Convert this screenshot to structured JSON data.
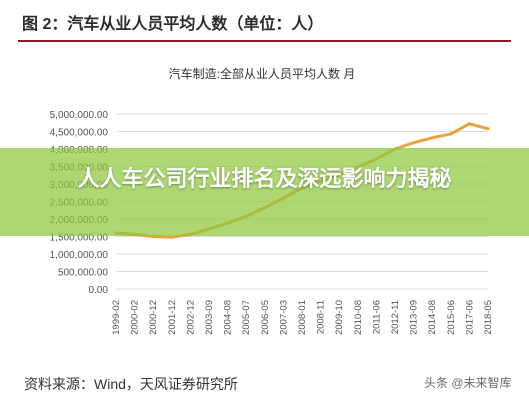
{
  "figure": {
    "title": "图 2：汽车从业人员平均人数（单位：人）",
    "source": "资料来源：Wind，天风证券研究所",
    "watermark": "头条 @未来智库"
  },
  "banner": {
    "text": "人人车公司行业排名及深远影响力揭秘"
  },
  "colors": {
    "line": "#E8A33C",
    "rule": "#8E1A22",
    "grid": "#DDDDDD",
    "banner": "#8CC83C"
  },
  "chart_data": {
    "type": "line",
    "title": "汽车制造:全部从业人员平均人数 月",
    "xlabel": "",
    "ylabel": "",
    "ylim": [
      0,
      5000000
    ],
    "yticks": [
      "0.00",
      "500,000.00",
      "1,000,000.00",
      "1,500,000.00",
      "2,000,000.00",
      "2,500,000.00",
      "3,000,000.00",
      "3,500,000.00",
      "4,000,000.00",
      "4,500,000.00",
      "5,000,000.00"
    ],
    "categories": [
      "1999-02",
      "2000-02",
      "2000-12",
      "2001-12",
      "2002-12",
      "2003-09",
      "2004-08",
      "2005-07",
      "2006-05",
      "2007-03",
      "2008-01",
      "2008-11",
      "2009-10",
      "2010-08",
      "2011-06",
      "2012-11",
      "2013-09",
      "2014-08",
      "2015-06",
      "2017-06",
      "2018-05"
    ],
    "series": [
      {
        "values": [
          1600000,
          1560000,
          1500000,
          1480000,
          1560000,
          1720000,
          1880000,
          2080000,
          2320000,
          2600000,
          2880000,
          3080000,
          3280000,
          3480000,
          3720000,
          4000000,
          4180000,
          4320000,
          4430000,
          4720000,
          4580000
        ]
      }
    ],
    "grid": true
  }
}
